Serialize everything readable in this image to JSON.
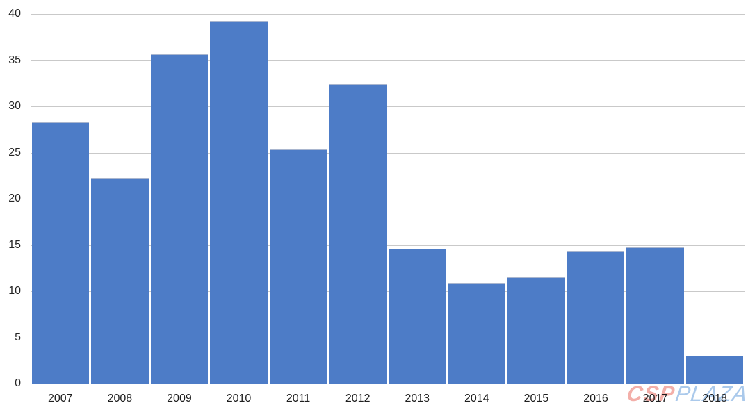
{
  "chart_data": {
    "type": "bar",
    "title": "",
    "xlabel": "",
    "ylabel": "",
    "categories": [
      "2007",
      "2008",
      "2009",
      "2010",
      "2011",
      "2012",
      "2013",
      "2014",
      "2015",
      "2016",
      "2017",
      "2018"
    ],
    "values": [
      28.2,
      22.2,
      35.6,
      39.2,
      25.3,
      32.3,
      14.5,
      10.8,
      11.4,
      14.3,
      14.7,
      2.9
    ],
    "ylim": [
      0,
      40
    ],
    "yticks": [
      0,
      5,
      10,
      15,
      20,
      25,
      30,
      35,
      40
    ],
    "grid": true,
    "legend": "none",
    "colors": {
      "bar_fill": "#4d7cc7",
      "gridline": "#c9c9c9",
      "axis_line": "#b3b3b3",
      "tick_label": "#262626"
    }
  },
  "watermark": {
    "csp_text": "CSP",
    "plaza_text": "PLAZA",
    "csp_color": "#f2a29b",
    "plaza_color": "#9cc0e8"
  }
}
